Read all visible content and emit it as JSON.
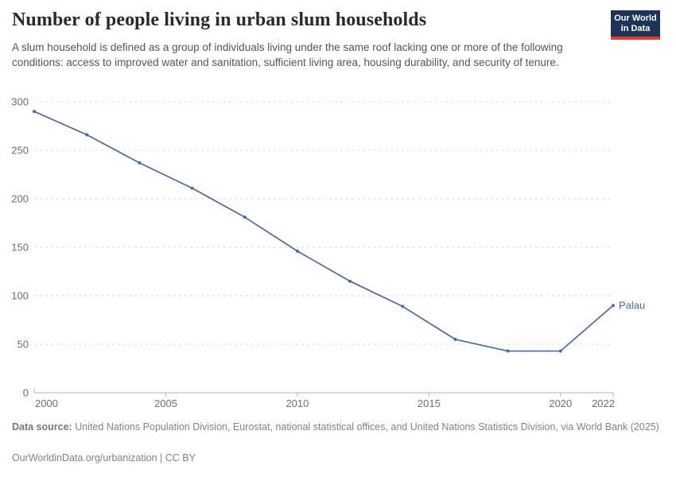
{
  "header": {
    "title": "Number of people living in urban slum households",
    "subtitle": "A slum household is defined as a group of individuals living under the same roof lacking one or more of the following conditions: access to improved water and sanitation, sufficient living area, housing durability, and security of tenure.",
    "logo": {
      "line1": "Our World",
      "line2": "in Data"
    }
  },
  "chart_data": {
    "type": "line",
    "title": "Number of people living in urban slum households",
    "x": [
      2000,
      2002,
      2004,
      2006,
      2008,
      2010,
      2012,
      2014,
      2016,
      2018,
      2020,
      2022
    ],
    "series": [
      {
        "name": "Palau",
        "color": "#4c6a9c",
        "values": [
          290,
          266,
          237,
          211,
          181,
          146,
          115,
          89,
          55,
          43,
          43,
          90
        ]
      }
    ],
    "x_ticks": [
      2000,
      2005,
      2010,
      2015,
      2020,
      2022
    ],
    "y_ticks": [
      0,
      50,
      100,
      150,
      200,
      250,
      300
    ],
    "xlim": [
      2000,
      2022
    ],
    "ylim": [
      0,
      300
    ],
    "xlabel": "",
    "ylabel": "",
    "grid": "horizontal-dashed",
    "legend": "end-of-line-label",
    "end_label": "Palau"
  },
  "footer": {
    "source_label": "Data source:",
    "source_text": " United Nations Population Division, Eurostat, national statistical offices, and United Nations Statistics Division, via World Bank (2025)",
    "url": "OurWorldinData.org/urbanization",
    "separator": " | ",
    "license": "CC BY"
  },
  "colors": {
    "series_blue": "#4c6a9c",
    "logo_navy": "#1d3456",
    "logo_red": "#dc3e32",
    "grid": "#d9d9d9",
    "axis": "#b5b5b5",
    "tick_text": "#6e6e6e"
  }
}
